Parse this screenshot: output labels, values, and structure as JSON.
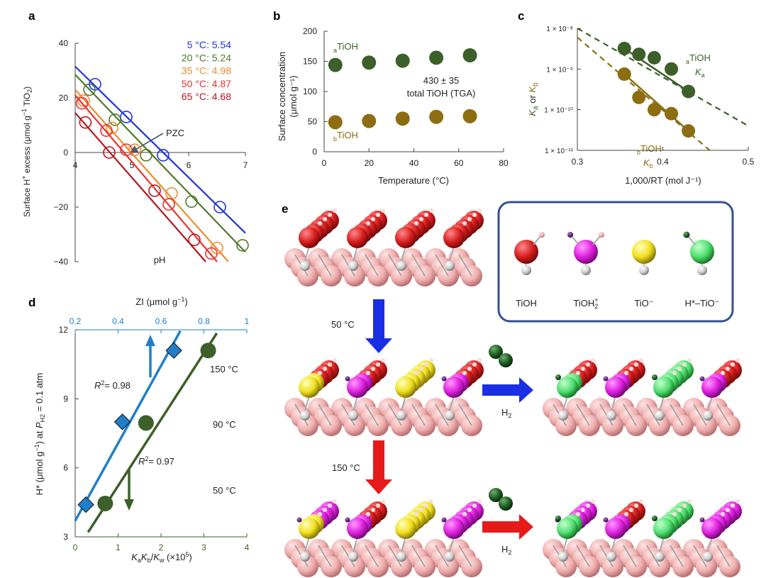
{
  "panel_labels": {
    "a": "a",
    "b": "b",
    "c": "c",
    "d": "d",
    "e": "e"
  },
  "chart_data": [
    {
      "panel": "a",
      "type": "scatter",
      "xlabel": "pH",
      "ylabel": "Surface H⁺ excess (μmol g⁻¹ TiO₂)",
      "xlim": [
        4,
        7
      ],
      "ylim": [
        -40,
        40
      ],
      "xticks": [
        "4",
        "5",
        "6",
        "7"
      ],
      "yticks": [
        "40",
        "20",
        "0",
        "−20",
        "−40"
      ],
      "annotation": "PZC",
      "series": [
        {
          "name": "5 °C: 5.54",
          "color": "#1f33e0",
          "x": [
            4.35,
            4.9,
            5.55,
            6.55
          ],
          "y": [
            25,
            13,
            -1,
            -20
          ],
          "line": [
            [
              4.0,
              31.5
            ],
            [
              7.0,
              -29.5
            ]
          ]
        },
        {
          "name": "20 °C: 5.24",
          "color": "#4f7a2a",
          "x": [
            4.25,
            4.7,
            5.25,
            6.05,
            6.95
          ],
          "y": [
            23,
            12,
            -1,
            -18,
            -34
          ],
          "line": [
            [
              4.0,
              28.5
            ],
            [
              7.0,
              -36.5
            ]
          ]
        },
        {
          "name": "35 °C: 4.98",
          "color": "#f08a2c",
          "x": [
            4.15,
            4.65,
            5.05,
            5.7,
            6.5
          ],
          "y": [
            19,
            9,
            1,
            -15,
            -35
          ],
          "line": [
            [
              4.0,
              23.0
            ],
            [
              6.7,
              -40.0
            ]
          ]
        },
        {
          "name": "50 °C: 4.87",
          "color": "#e8312f",
          "x": [
            4.12,
            4.55,
            4.9,
            5.65,
            6.4
          ],
          "y": [
            18,
            8,
            1,
            -19,
            -37
          ],
          "line": [
            [
              4.0,
              21.0
            ],
            [
              6.5,
              -40.0
            ]
          ]
        },
        {
          "name": "65 °C: 4.68",
          "color": "#b5151b",
          "x": [
            4.18,
            4.6,
            5.4,
            6.1
          ],
          "y": [
            11,
            0,
            -14,
            -32
          ],
          "line": [
            [
              4.0,
              14.5
            ],
            [
              6.3,
              -40.0
            ]
          ]
        }
      ]
    },
    {
      "panel": "b",
      "type": "scatter",
      "xlabel": "Temperature (°C)",
      "ylabel_line1": "Surface concentration",
      "ylabel_line2": "(μmol g⁻¹)",
      "xlim": [
        0,
        80
      ],
      "ylim": [
        0,
        200
      ],
      "xticks": [
        "0",
        "20",
        "40",
        "60",
        "80"
      ],
      "yticks": [
        "200",
        "150",
        "100",
        "50",
        "0"
      ],
      "annotations": [
        "430 ± 35",
        "total TiOH (TGA)"
      ],
      "series": [
        {
          "name_sub": "a",
          "name": "TiOH",
          "color": "#3d5f2a",
          "x": [
            5,
            20,
            35,
            50,
            65
          ],
          "y": [
            144,
            148,
            151,
            156,
            160
          ]
        },
        {
          "name_sub": "b",
          "name": "TiOH",
          "color": "#8c6d12",
          "x": [
            5,
            20,
            35,
            50,
            65
          ],
          "y": [
            49,
            51,
            55,
            58,
            59
          ]
        }
      ]
    },
    {
      "panel": "c",
      "type": "scatter",
      "scale": "log-y",
      "xlabel": "1,000/RT (mol J⁻¹)",
      "ylabel": "Ka or Kb",
      "xlim": [
        0.3,
        0.5
      ],
      "ylim": [
        1e-11,
        1e-08
      ],
      "xticks": [
        "0.3",
        "0.4",
        "0.5"
      ],
      "yticks": [
        "1 × 10⁻⁸",
        "1 × 10⁻⁹",
        "1 × 10⁻¹⁰",
        "1 × 10⁻¹¹"
      ],
      "series": [
        {
          "name_sub": "a",
          "name": "TiOH",
          "k_label": "K",
          "k_sub": "a",
          "color": "#3d5f2a",
          "x": [
            0.355,
            0.372,
            0.39,
            0.41,
            0.43
          ],
          "y": [
            3.2e-09,
            2.3e-09,
            1.9e-09,
            1e-09,
            2.8e-10
          ],
          "dash_line": [
            [
              0.3,
              1e-08
            ],
            [
              0.5,
              4e-11
            ]
          ]
        },
        {
          "name_sub": "b",
          "name": "TiOH",
          "k_label": "K",
          "k_sub": "b",
          "color": "#8c6d12",
          "x": [
            0.355,
            0.372,
            0.39,
            0.41,
            0.43
          ],
          "y": [
            7.5e-10,
            2e-10,
            1e-10,
            8e-11,
            3e-11
          ],
          "dash_line": [
            [
              0.3,
              6e-09
            ],
            [
              0.455,
              1e-11
            ]
          ]
        }
      ]
    },
    {
      "panel": "d",
      "type": "scatter",
      "xlabel": "KaKb/Kw (×10⁵)",
      "x2label": "ZI (μmol g⁻¹)",
      "ylabel": "H* (μmol g⁻¹) at PH₂ = 0.1 atm",
      "xlim": [
        0,
        4
      ],
      "x2lim": [
        0.2,
        1.0
      ],
      "ylim": [
        3,
        12
      ],
      "xticks": [
        "0",
        "1",
        "2",
        "3",
        "4"
      ],
      "x2ticks": [
        "0.2",
        "0.4",
        "0.6",
        "0.8",
        "1"
      ],
      "yticks": [
        "12",
        "9",
        "6",
        "3"
      ],
      "temperature_labels": [
        {
          "text": "150 °C",
          "color": "#e8312f",
          "y": 10.4
        },
        {
          "text": "90 °C",
          "color": "#2fbf4f",
          "y": 8.0
        },
        {
          "text": "50 °C",
          "color": "#25306e",
          "y": 4.6
        }
      ],
      "series": [
        {
          "name": "ZI",
          "r2": "= 0.98",
          "color": "#1f7fc9",
          "marker": "diamond",
          "axis": "top",
          "x": [
            0.25,
            0.42,
            0.66
          ],
          "y": [
            4.4,
            8.0,
            11.1
          ],
          "line": [
            [
              0.2,
              3.7
            ],
            [
              0.69,
              11.95
            ]
          ]
        },
        {
          "name": "KaKb/Kw",
          "r2": "= 0.97",
          "color": "#3d5f2a",
          "marker": "circle",
          "axis": "bottom",
          "x": [
            0.7,
            1.65,
            3.1
          ],
          "y": [
            4.45,
            7.95,
            11.1
          ],
          "line": [
            [
              0.3,
              3.2
            ],
            [
              3.3,
              11.85
            ]
          ]
        }
      ]
    }
  ],
  "diagram": {
    "temp_50": "50 °C",
    "temp_150": "150 °C",
    "h2_label": "H",
    "h2_sub": "2",
    "legend": [
      {
        "label": "TiOH",
        "ball": "#e02020",
        "top": "#f4c4c8"
      },
      {
        "label": "TiOH",
        "sub": "2",
        "sup": "+",
        "ball": "#e020e0",
        "top": "#f4c4c8",
        "top2": "#6a2a8a"
      },
      {
        "label": "TiO⁻",
        "ball": "#f0e020"
      },
      {
        "label": "H*–TiO⁻",
        "ball": "#50e070",
        "top": "#1f6b2a"
      }
    ],
    "colors": {
      "red": "#d81e1e",
      "pink": "#f0b0b0",
      "magenta": "#e020e0",
      "yellow": "#f0e020",
      "green": "#50e070",
      "darkgreen": "#1e5e22",
      "arrow_blue": "#1a2ee6",
      "arrow_red": "#e61a1a",
      "frame": "#34528f"
    },
    "rows": [
      {
        "name": "row-initial",
        "heads": [
          "red",
          "red",
          "red",
          "red"
        ]
      },
      {
        "name": "row-50c-before",
        "heads": [
          "red-yellow",
          "red-magenta",
          "yellow",
          "red-magenta"
        ]
      },
      {
        "name": "row-50c-after",
        "heads": [
          "red-green",
          "red-magenta",
          "green",
          "red-magenta"
        ]
      },
      {
        "name": "row-150c-before",
        "heads": [
          "magenta-yellow",
          "red-magenta",
          "yellow",
          "magenta"
        ]
      },
      {
        "name": "row-150c-after",
        "heads": [
          "magenta-green",
          "red-magenta",
          "green",
          "magenta"
        ]
      }
    ]
  }
}
